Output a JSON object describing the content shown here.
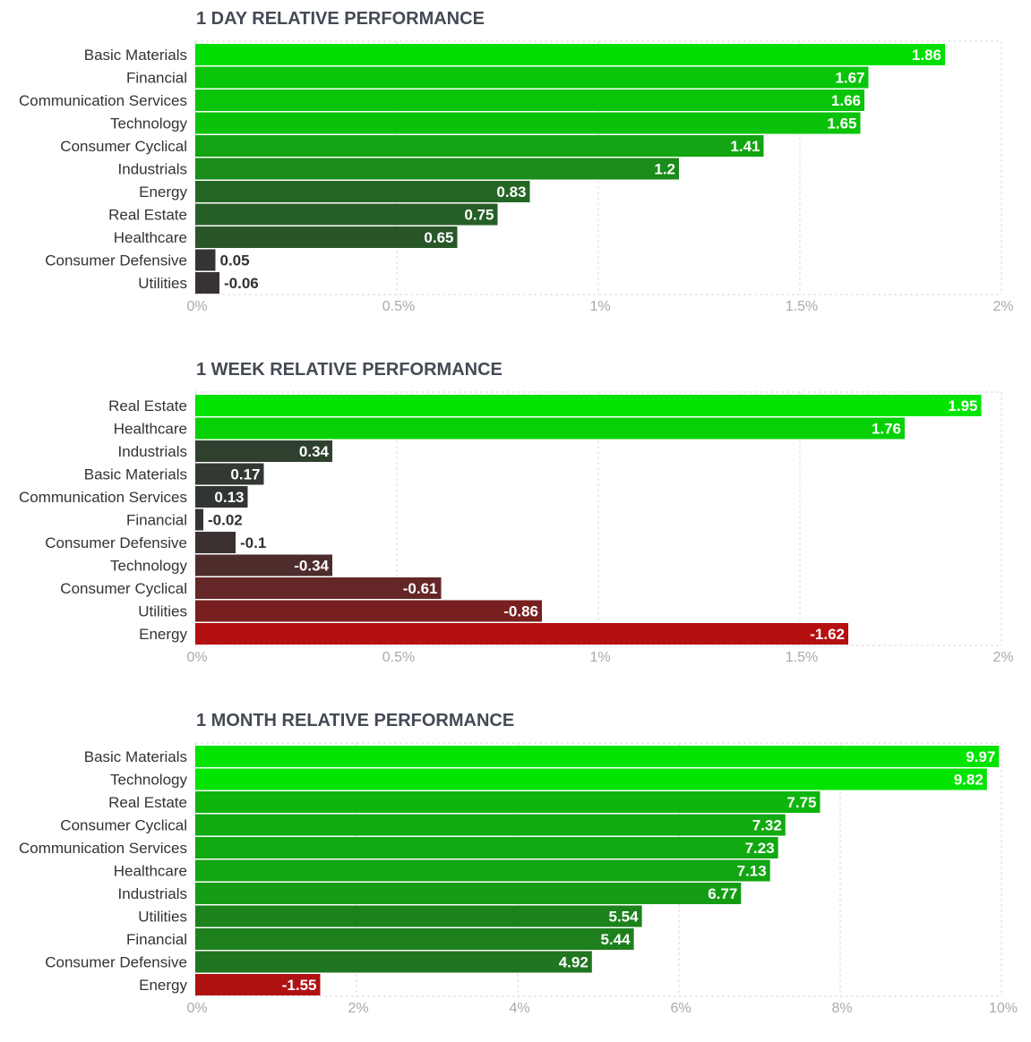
{
  "chart_data": [
    {
      "type": "bar",
      "orientation": "horizontal",
      "title": "1 DAY RELATIVE PERFORMANCE",
      "categories": [
        "Basic Materials",
        "Financial",
        "Communication Services",
        "Technology",
        "Consumer Cyclical",
        "Industrials",
        "Energy",
        "Real Estate",
        "Healthcare",
        "Consumer Defensive",
        "Utilities"
      ],
      "values": [
        1.86,
        1.67,
        1.66,
        1.65,
        1.41,
        1.2,
        0.83,
        0.75,
        0.65,
        0.05,
        -0.06
      ],
      "value_labels": [
        "1.86",
        "1.67",
        "1.66",
        "1.65",
        "1.41",
        "1.2",
        "0.83",
        "0.75",
        "0.65",
        "0.05",
        "-0.06"
      ],
      "xlim": [
        0,
        2
      ],
      "ticks": [
        "0%",
        "0.5%",
        "1%",
        "1.5%",
        "2%"
      ],
      "grid": true,
      "positive_color": "#00e400",
      "negative_color": "#b51010"
    },
    {
      "type": "bar",
      "orientation": "horizontal",
      "title": "1 WEEK RELATIVE PERFORMANCE",
      "categories": [
        "Real Estate",
        "Healthcare",
        "Industrials",
        "Basic Materials",
        "Communication Services",
        "Financial",
        "Consumer Defensive",
        "Technology",
        "Consumer Cyclical",
        "Utilities",
        "Energy"
      ],
      "values": [
        1.95,
        1.76,
        0.34,
        0.17,
        0.13,
        -0.02,
        -0.1,
        -0.34,
        -0.61,
        -0.86,
        -1.62
      ],
      "value_labels": [
        "1.95",
        "1.76",
        "0.34",
        "0.17",
        "0.13",
        "-0.02",
        "-0.1",
        "-0.34",
        "-0.61",
        "-0.86",
        "-1.62"
      ],
      "xlim": [
        0,
        2
      ],
      "ticks": [
        "0%",
        "0.5%",
        "1%",
        "1.5%",
        "2%"
      ],
      "grid": true,
      "positive_color": "#00e400",
      "negative_color": "#b51010"
    },
    {
      "type": "bar",
      "orientation": "horizontal",
      "title": "1 MONTH RELATIVE PERFORMANCE",
      "categories": [
        "Basic Materials",
        "Technology",
        "Real Estate",
        "Consumer Cyclical",
        "Communication Services",
        "Healthcare",
        "Industrials",
        "Utilities",
        "Financial",
        "Consumer Defensive",
        "Energy"
      ],
      "values": [
        9.97,
        9.82,
        7.75,
        7.32,
        7.23,
        7.13,
        6.77,
        5.54,
        5.44,
        4.92,
        -1.55
      ],
      "value_labels": [
        "9.97",
        "9.82",
        "7.75",
        "7.32",
        "7.23",
        "7.13",
        "6.77",
        "5.54",
        "5.44",
        "4.92",
        "-1.55"
      ],
      "xlim": [
        0,
        10
      ],
      "ticks": [
        "0%",
        "2%",
        "4%",
        "6%",
        "8%",
        "10%"
      ],
      "grid": true,
      "positive_color": "#00e400",
      "negative_color": "#b51010"
    }
  ]
}
